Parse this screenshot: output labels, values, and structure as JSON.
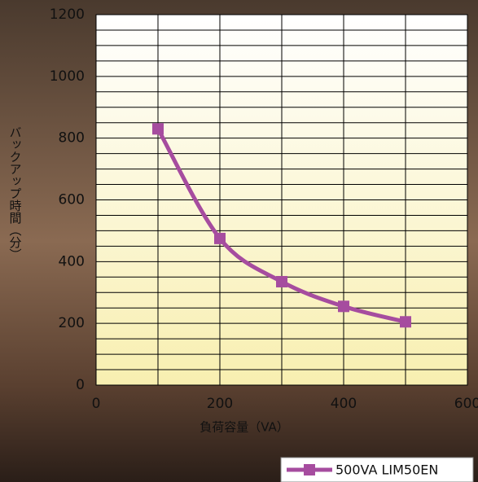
{
  "chart_data": {
    "type": "line",
    "x_label": "負荷容量（VA）",
    "y_label": "バックアップ時間（分）",
    "series": [
      {
        "name": "500VA LIM50EN",
        "color": "#a64c9f",
        "x": [
          100,
          200,
          300,
          400,
          500
        ],
        "values": [
          830,
          475,
          335,
          255,
          205
        ]
      }
    ],
    "xlim": [
      0,
      600
    ],
    "xticks": [
      0,
      200,
      400,
      600
    ],
    "ylim": [
      0,
      1200
    ],
    "yticks": [
      0,
      200,
      400,
      600,
      800,
      1000,
      1200
    ],
    "grid": true,
    "legend": "bottom-right"
  }
}
